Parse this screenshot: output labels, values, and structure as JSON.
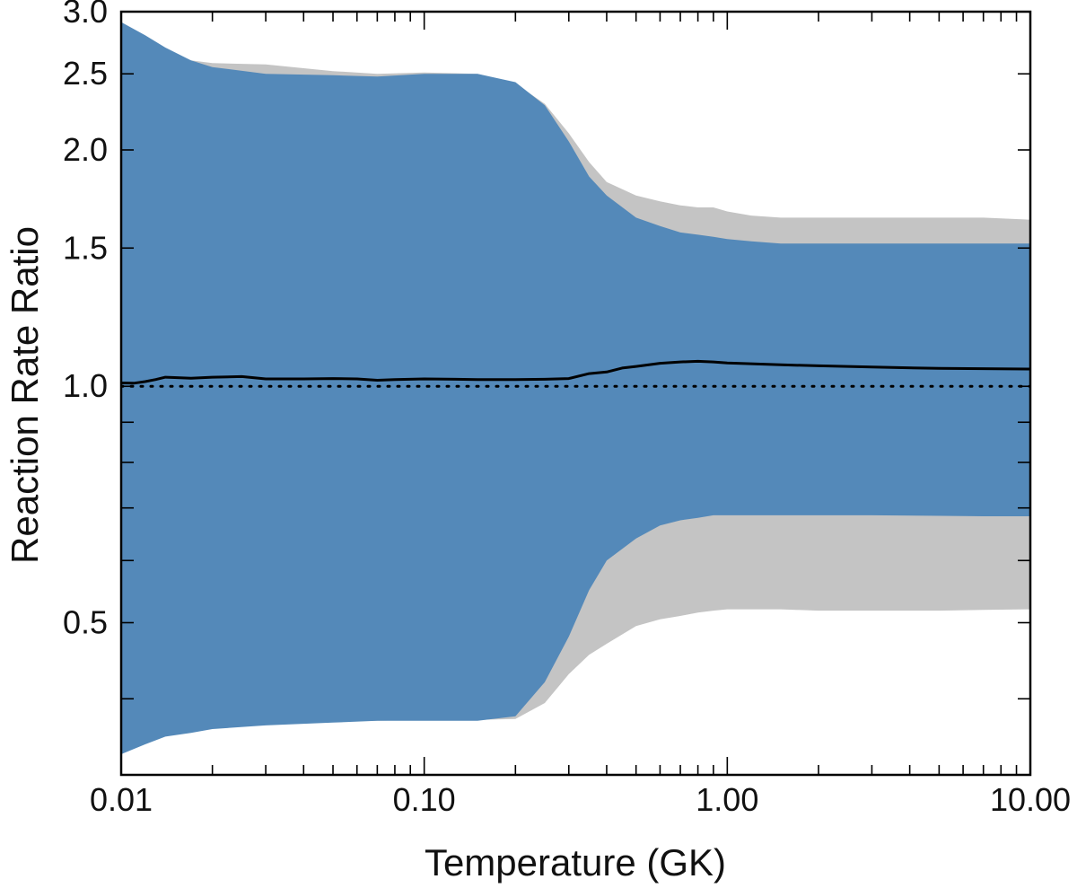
{
  "chart_data": {
    "type": "area",
    "xscale": "log",
    "yscale": "log",
    "xlabel": "Temperature (GK)",
    "ylabel": "Reaction Rate Ratio",
    "xlim": [
      0.01,
      10.0
    ],
    "ylim": [
      0.32,
      3.0
    ],
    "x_ticks": [
      0.01,
      0.1,
      1.0,
      10.0
    ],
    "x_tick_labels": [
      "0.01",
      "0.10",
      "1.00",
      "10.00"
    ],
    "y_ticks": [
      0.5,
      1.0,
      1.5,
      2.0,
      2.5,
      3.0
    ],
    "y_tick_labels": [
      "0.5",
      "1.0",
      "1.5",
      "2.0",
      "2.5",
      "3.0"
    ],
    "y_minor_ticks": [
      0.4,
      0.6,
      0.7,
      0.8,
      0.9
    ],
    "reference_line": {
      "y": 1.0,
      "style": "dotted"
    },
    "colors": {
      "blue_band": "#5489b9",
      "gray_band": "#c4c4c4",
      "median_line": "#000000"
    },
    "series": [
      {
        "name": "gray-uncertainty-band",
        "x": [
          0.01,
          0.012,
          0.014,
          0.017,
          0.02,
          0.03,
          0.05,
          0.07,
          0.1,
          0.15,
          0.2,
          0.25,
          0.3,
          0.35,
          0.4,
          0.5,
          0.6,
          0.7,
          0.8,
          0.9,
          1.0,
          1.2,
          1.5,
          2.0,
          3.0,
          5.0,
          7.0,
          10.0
        ],
        "upper": [
          2.9,
          2.75,
          2.66,
          2.6,
          2.58,
          2.57,
          2.52,
          2.5,
          2.51,
          2.5,
          2.43,
          2.29,
          2.1,
          1.93,
          1.82,
          1.75,
          1.72,
          1.7,
          1.69,
          1.69,
          1.67,
          1.65,
          1.64,
          1.64,
          1.64,
          1.64,
          1.64,
          1.63
        ],
        "lower": [
          0.35,
          0.357,
          0.362,
          0.366,
          0.369,
          0.372,
          0.374,
          0.375,
          0.376,
          0.376,
          0.377,
          0.395,
          0.43,
          0.455,
          0.47,
          0.495,
          0.505,
          0.51,
          0.515,
          0.518,
          0.52,
          0.52,
          0.52,
          0.518,
          0.518,
          0.518,
          0.519,
          0.52
        ]
      },
      {
        "name": "blue-uncertainty-band",
        "x": [
          0.01,
          0.012,
          0.014,
          0.017,
          0.02,
          0.03,
          0.05,
          0.07,
          0.1,
          0.15,
          0.2,
          0.25,
          0.3,
          0.35,
          0.4,
          0.5,
          0.6,
          0.7,
          0.8,
          0.9,
          1.0,
          1.2,
          1.5,
          2.0,
          3.0,
          5.0,
          7.0,
          10.0
        ],
        "upper": [
          2.91,
          2.8,
          2.7,
          2.6,
          2.55,
          2.5,
          2.49,
          2.48,
          2.5,
          2.5,
          2.44,
          2.28,
          2.05,
          1.85,
          1.75,
          1.64,
          1.6,
          1.57,
          1.56,
          1.55,
          1.54,
          1.53,
          1.52,
          1.52,
          1.52,
          1.52,
          1.52,
          1.52
        ],
        "lower": [
          0.34,
          0.35,
          0.358,
          0.362,
          0.366,
          0.37,
          0.373,
          0.375,
          0.375,
          0.375,
          0.38,
          0.42,
          0.48,
          0.55,
          0.6,
          0.64,
          0.665,
          0.675,
          0.68,
          0.685,
          0.685,
          0.685,
          0.685,
          0.685,
          0.685,
          0.684,
          0.683,
          0.683
        ]
      },
      {
        "name": "median-ratio",
        "x": [
          0.01,
          0.011,
          0.012,
          0.013,
          0.014,
          0.015,
          0.017,
          0.02,
          0.025,
          0.03,
          0.04,
          0.05,
          0.06,
          0.07,
          0.08,
          0.1,
          0.15,
          0.2,
          0.25,
          0.3,
          0.35,
          0.4,
          0.45,
          0.5,
          0.6,
          0.7,
          0.8,
          0.9,
          1.0,
          1.5,
          2.0,
          3.0,
          5.0,
          10.0
        ],
        "values": [
          1.01,
          1.009,
          1.014,
          1.02,
          1.027,
          1.026,
          1.024,
          1.027,
          1.029,
          1.022,
          1.022,
          1.023,
          1.022,
          1.018,
          1.02,
          1.022,
          1.02,
          1.02,
          1.021,
          1.023,
          1.038,
          1.043,
          1.055,
          1.06,
          1.07,
          1.074,
          1.076,
          1.074,
          1.071,
          1.065,
          1.062,
          1.058,
          1.054,
          1.052
        ]
      }
    ]
  }
}
